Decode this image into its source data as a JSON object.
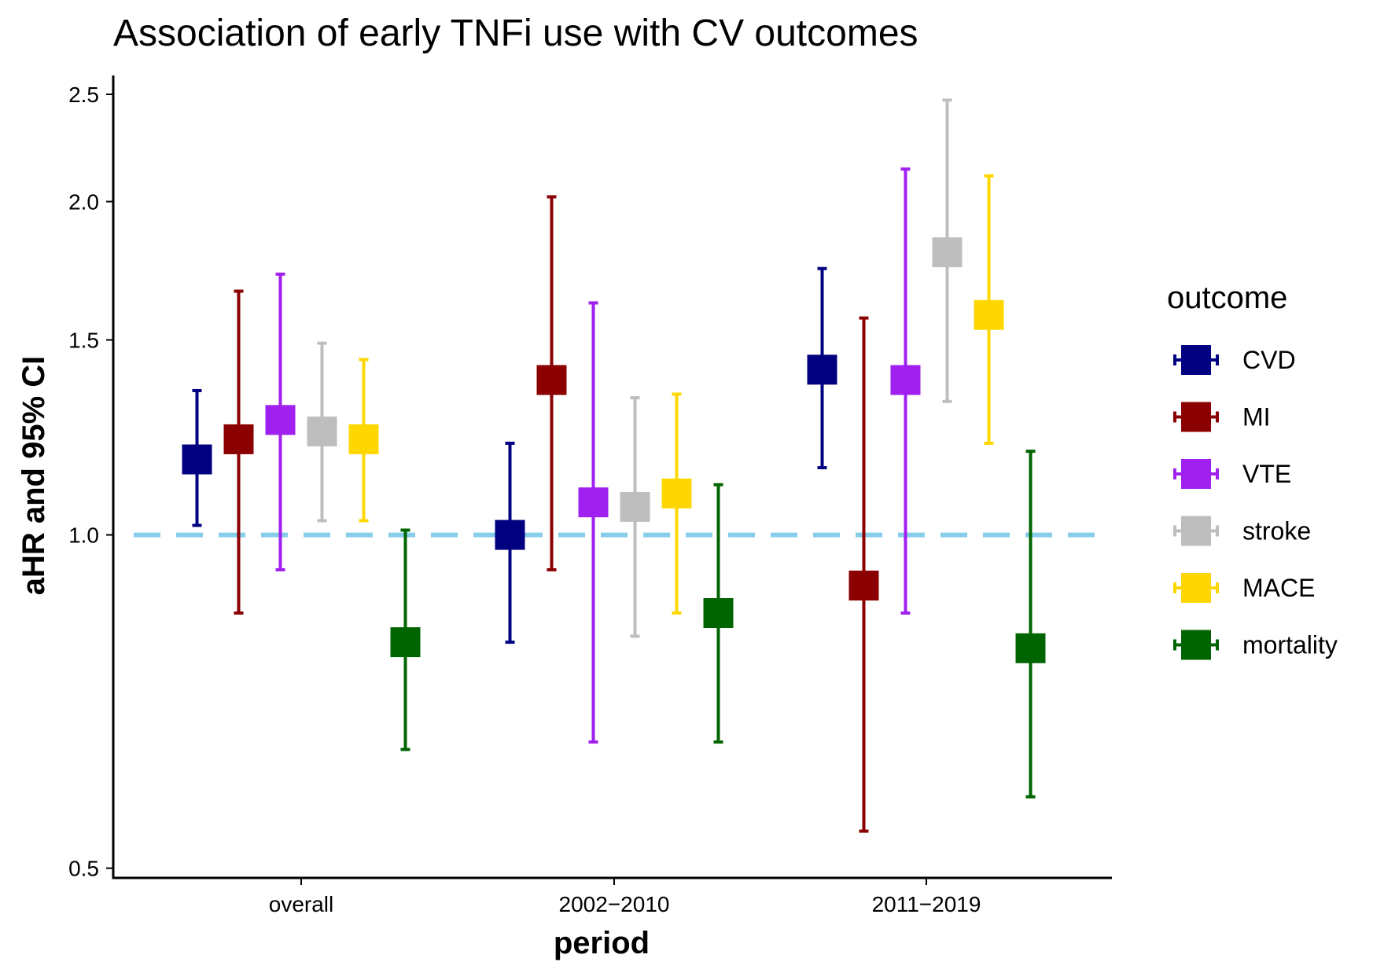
{
  "chart_data": {
    "type": "errorbar",
    "title": "Association of early TNFi use with CV outcomes",
    "xlabel": "period",
    "ylabel": "aHR and 95% CI",
    "y_scale": "log",
    "ylim": [
      0.49,
      2.6
    ],
    "yticks": [
      0.5,
      1.0,
      1.5,
      2.0,
      2.5
    ],
    "ytick_labels": [
      "0.5",
      "1.0",
      "1.5",
      "2.0",
      "2.5"
    ],
    "reference_line": 1.0,
    "reference_line_color": "#87CEEB",
    "categories": [
      "overall",
      "2002−2010",
      "2011−2019"
    ],
    "legend_title": "outcome",
    "legend_position": "right",
    "grid": false,
    "series": [
      {
        "name": "CVD",
        "color": "#000080",
        "estimate": [
          1.17,
          1.0,
          1.41
        ],
        "lower": [
          1.02,
          0.8,
          1.15
        ],
        "upper": [
          1.35,
          1.21,
          1.74
        ]
      },
      {
        "name": "MI",
        "color": "#8B0000",
        "estimate": [
          1.22,
          1.38,
          0.9
        ],
        "lower": [
          0.85,
          0.93,
          0.54
        ],
        "upper": [
          1.66,
          2.02,
          1.57
        ]
      },
      {
        "name": "VTE",
        "color": "#A020F0",
        "estimate": [
          1.27,
          1.07,
          1.38
        ],
        "lower": [
          0.93,
          0.65,
          0.85
        ],
        "upper": [
          1.72,
          1.62,
          2.14
        ]
      },
      {
        "name": "stroke",
        "color": "#BEBEBE",
        "estimate": [
          1.24,
          1.06,
          1.8
        ],
        "lower": [
          1.03,
          0.81,
          1.32
        ],
        "upper": [
          1.49,
          1.33,
          2.47
        ]
      },
      {
        "name": "MACE",
        "color": "#FFD700",
        "estimate": [
          1.22,
          1.09,
          1.58
        ],
        "lower": [
          1.03,
          0.85,
          1.21
        ],
        "upper": [
          1.44,
          1.34,
          2.11
        ]
      },
      {
        "name": "mortality",
        "color": "#006400",
        "estimate": [
          0.8,
          0.85,
          0.79
        ],
        "lower": [
          0.64,
          0.65,
          0.58
        ],
        "upper": [
          1.01,
          1.11,
          1.19
        ]
      }
    ]
  }
}
